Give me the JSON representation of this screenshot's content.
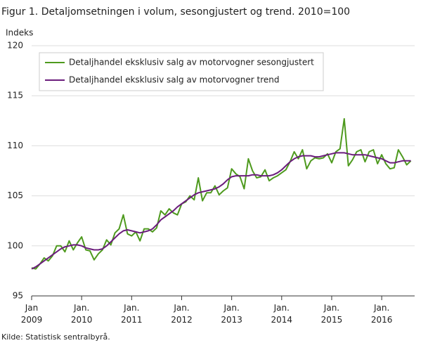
{
  "chart_data": {
    "type": "line",
    "title": "Figur 1. Detaljomsetningen i volum, sesongjustert og trend. 2010=100",
    "y_label": "Indeks",
    "source": "Kilde: Statistisk sentralbyrå.",
    "categories": [
      "Jan 2009",
      null,
      null,
      null,
      null,
      null,
      null,
      null,
      null,
      null,
      null,
      null,
      "Jan. 2010",
      null,
      null,
      null,
      null,
      null,
      null,
      null,
      null,
      null,
      null,
      null,
      "Jan. 2011",
      null,
      null,
      null,
      null,
      null,
      null,
      null,
      null,
      null,
      null,
      null,
      "Jan. 2012",
      null,
      null,
      null,
      null,
      null,
      null,
      null,
      null,
      null,
      null,
      null,
      "Jan. 2013",
      null,
      null,
      null,
      null,
      null,
      null,
      null,
      null,
      null,
      null,
      null,
      "Jan. 2014",
      null,
      null,
      null,
      null,
      null,
      null,
      null,
      null,
      null,
      null,
      null,
      "Jan. 2015",
      null,
      null,
      null,
      null,
      null,
      null,
      null,
      null,
      null,
      null,
      null,
      "Jan. 2016",
      null,
      null,
      null,
      null,
      null,
      null,
      null
    ],
    "series": [
      {
        "name": "Detaljhandel eksklusiv salg av motorvogner sesongjustert",
        "color": "#4e9a1e",
        "values": [
          97.8,
          97.7,
          98.2,
          98.8,
          98.5,
          99.0,
          100.0,
          100.0,
          99.4,
          100.5,
          99.6,
          100.3,
          100.9,
          99.6,
          99.5,
          98.6,
          99.2,
          99.6,
          100.6,
          100.1,
          101.3,
          101.7,
          103.1,
          101.2,
          101.0,
          101.4,
          100.5,
          101.7,
          101.7,
          101.4,
          101.8,
          103.5,
          103.1,
          103.7,
          103.3,
          103.1,
          104.2,
          104.4,
          105.0,
          104.6,
          106.8,
          104.5,
          105.3,
          105.3,
          106.0,
          105.1,
          105.5,
          105.8,
          107.7,
          107.2,
          106.9,
          105.7,
          108.7,
          107.5,
          106.8,
          106.9,
          107.6,
          106.5,
          106.8,
          107.0,
          107.3,
          107.6,
          108.4,
          109.4,
          108.7,
          109.6,
          107.7,
          108.5,
          108.8,
          108.7,
          108.8,
          109.2,
          108.3,
          109.4,
          109.7,
          112.7,
          108.0,
          108.6,
          109.4,
          109.6,
          108.4,
          109.4,
          109.6,
          108.2,
          109.1,
          108.2,
          107.7,
          107.8,
          109.6,
          108.9,
          108.1,
          108.5
        ]
      },
      {
        "name": "Detaljhandel eksklusiv salg av motorvogner trend",
        "color": "#6b1d7c",
        "values": [
          97.7,
          97.9,
          98.2,
          98.5,
          98.8,
          99.1,
          99.4,
          99.7,
          99.9,
          100.0,
          100.1,
          100.1,
          100.0,
          99.8,
          99.7,
          99.6,
          99.6,
          99.7,
          100.0,
          100.4,
          100.8,
          101.2,
          101.5,
          101.6,
          101.5,
          101.4,
          101.3,
          101.4,
          101.5,
          101.7,
          102.1,
          102.6,
          102.9,
          103.2,
          103.5,
          103.9,
          104.2,
          104.5,
          104.8,
          105.1,
          105.3,
          105.4,
          105.5,
          105.6,
          105.7,
          105.9,
          106.2,
          106.6,
          106.9,
          107.0,
          107.0,
          107.0,
          107.0,
          107.1,
          107.1,
          107.0,
          107.0,
          107.0,
          107.1,
          107.3,
          107.6,
          108.0,
          108.4,
          108.7,
          108.9,
          109.0,
          109.0,
          109.0,
          108.9,
          108.9,
          109.0,
          109.1,
          109.2,
          109.3,
          109.3,
          109.3,
          109.2,
          109.1,
          109.1,
          109.1,
          109.1,
          109.0,
          108.9,
          108.8,
          108.7,
          108.5,
          108.3,
          108.3,
          108.4,
          108.5,
          108.5,
          108.5
        ]
      }
    ],
    "ylim": [
      95,
      120
    ],
    "yticks": [
      95,
      100,
      105,
      110,
      115,
      120
    ],
    "grid": true,
    "legend": "top-left"
  }
}
